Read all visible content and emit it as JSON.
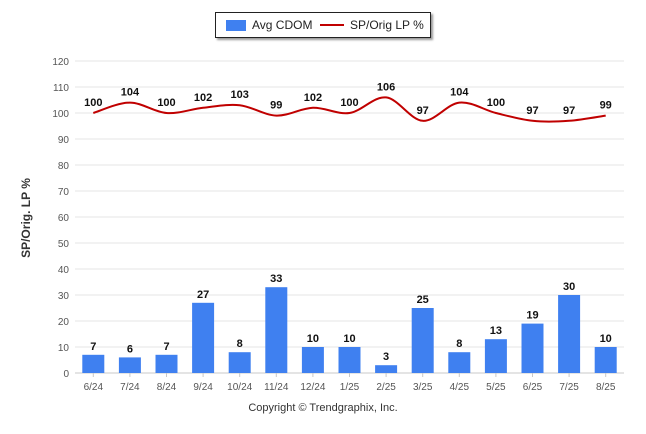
{
  "legend": {
    "bar_label": "Avg CDOM",
    "line_label": "SP/Orig LP %"
  },
  "copyright": "Copyright © Trendgraphix, Inc.",
  "colors": {
    "bar": "#3f80f0",
    "line": "#c00000",
    "grid": "#e6e6e6",
    "axis_text": "#555555"
  },
  "chart_data": {
    "type": "bar",
    "title": "",
    "xlabel": "",
    "ylabel": "SP/Orig. LP %",
    "ylim": [
      0,
      120
    ],
    "yticks": [
      0,
      10,
      20,
      30,
      40,
      50,
      60,
      70,
      80,
      90,
      100,
      110,
      120
    ],
    "grid": true,
    "legend_position": "top-center",
    "categories": [
      "6/24",
      "7/24",
      "8/24",
      "9/24",
      "10/24",
      "11/24",
      "12/24",
      "1/25",
      "2/25",
      "3/25",
      "4/25",
      "5/25",
      "6/25",
      "7/25",
      "8/25"
    ],
    "series": [
      {
        "name": "Avg CDOM",
        "type": "bar",
        "values": [
          7,
          6,
          7,
          27,
          8,
          33,
          10,
          10,
          3,
          25,
          8,
          13,
          19,
          30,
          10
        ]
      },
      {
        "name": "SP/Orig LP %",
        "type": "line",
        "values": [
          100,
          104,
          100,
          102,
          103,
          99,
          102,
          100,
          106,
          97,
          104,
          100,
          97,
          97,
          99
        ]
      }
    ]
  }
}
